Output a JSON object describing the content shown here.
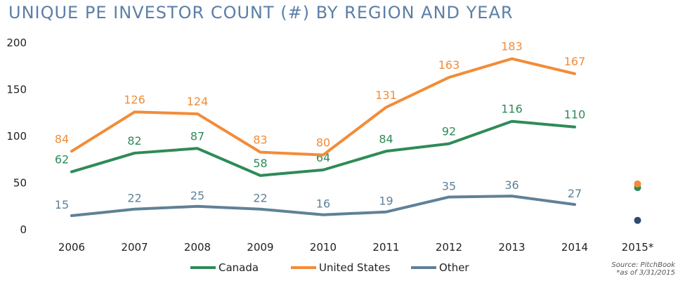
{
  "chart_data": {
    "type": "line",
    "title": "UNIQUE PE INVESTOR COUNT (#) BY REGION AND YEAR",
    "categories": [
      "2006",
      "2007",
      "2008",
      "2009",
      "2010",
      "2011",
      "2012",
      "2013",
      "2014",
      "2015*"
    ],
    "yticks": [
      "0",
      "50",
      "100",
      "150",
      "200"
    ],
    "ylim": [
      0,
      200
    ],
    "grid": false,
    "legend_position": "bottom",
    "series": [
      {
        "name": "Canada",
        "color": "#2e8b57",
        "values": [
          62,
          82,
          87,
          58,
          64,
          84,
          92,
          116,
          110,
          45
        ],
        "labels": [
          "62",
          "82",
          "87",
          "58",
          "64",
          "84",
          "92",
          "116",
          "110",
          ""
        ]
      },
      {
        "name": "United States",
        "color": "#f28c38",
        "values": [
          84,
          126,
          124,
          83,
          80,
          131,
          163,
          183,
          167,
          49
        ],
        "labels": [
          "84",
          "126",
          "124",
          "83",
          "80",
          "131",
          "163",
          "183",
          "167",
          ""
        ]
      },
      {
        "name": "Other",
        "color": "#5e8198",
        "values": [
          15,
          22,
          25,
          22,
          16,
          19,
          35,
          36,
          27,
          10
        ],
        "labels": [
          "15",
          "22",
          "25",
          "22",
          "16",
          "19",
          "35",
          "36",
          "27",
          ""
        ]
      }
    ],
    "point_series_2015_colors": [
      "#2e8b57",
      "#f28c38",
      "#2f4b70"
    ],
    "source_line1": "Source: PitchBook",
    "source_line2": "*as of 3/31/2015"
  }
}
